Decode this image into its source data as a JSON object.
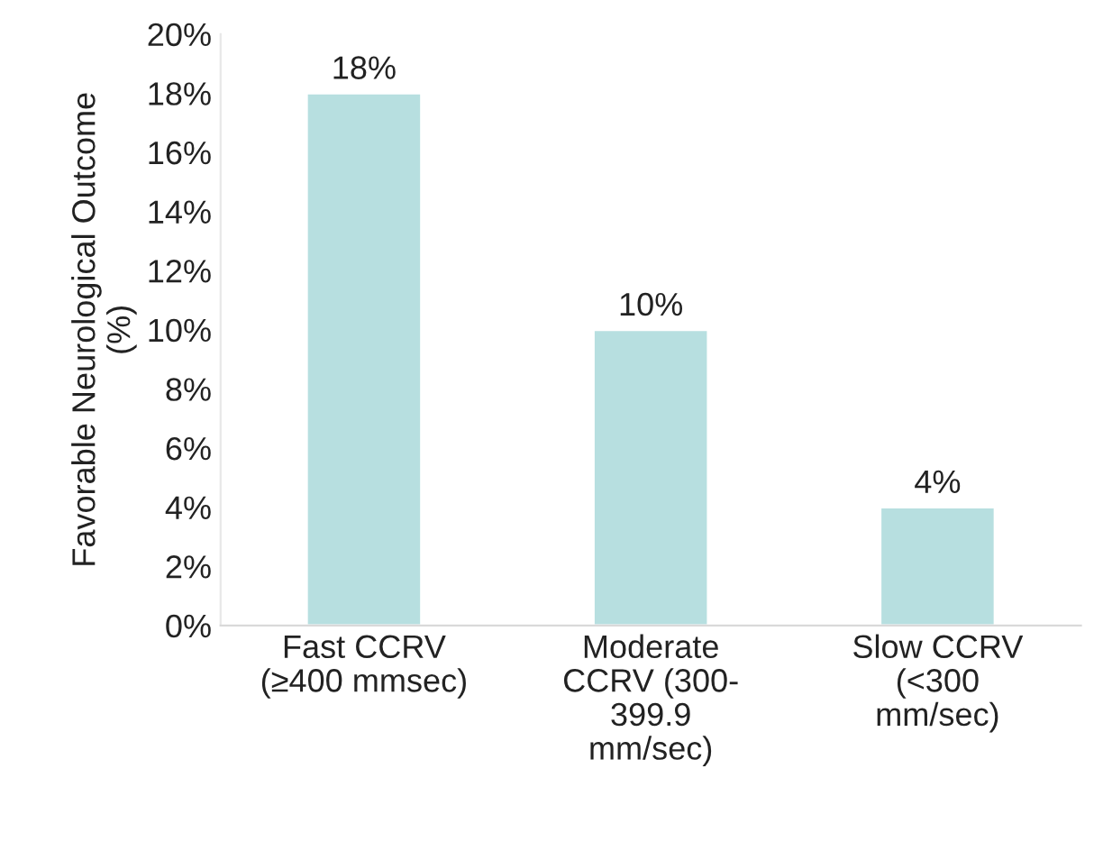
{
  "chart_data": {
    "type": "bar",
    "ylabel": "Favorable Neurological Outcome\n(%)",
    "categories": [
      "Fast CCRV\n(≥400 mmsec)",
      "Moderate\nCCRV (300-\n399.9\nmm/sec)",
      "Slow CCRV\n(<300\nmm/sec)"
    ],
    "values": [
      18,
      10,
      4
    ],
    "value_labels": [
      "18%",
      "10%",
      "4%"
    ],
    "color": "#b7dfe0",
    "ylim": [
      0,
      20
    ],
    "yticks": [
      {
        "value": 0,
        "label": "0%"
      },
      {
        "value": 2,
        "label": "2%"
      },
      {
        "value": 4,
        "label": "4%"
      },
      {
        "value": 6,
        "label": "6%"
      },
      {
        "value": 8,
        "label": "8%"
      },
      {
        "value": 10,
        "label": "10%"
      },
      {
        "value": 12,
        "label": "12%"
      },
      {
        "value": 14,
        "label": "14%"
      },
      {
        "value": 16,
        "label": "16%"
      },
      {
        "value": 18,
        "label": "18%"
      },
      {
        "value": 20,
        "label": "20%"
      }
    ],
    "grid": false,
    "legend": false
  }
}
